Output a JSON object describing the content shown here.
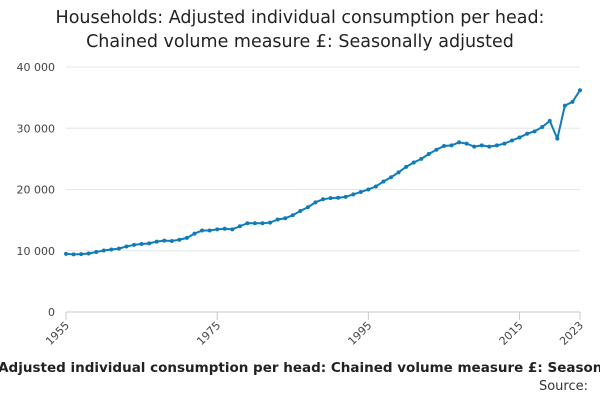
{
  "chart_data": {
    "type": "line",
    "title_lines": [
      "Households: Adjusted individual consumption per head:",
      "Chained volume measure £: Seasonally adjusted"
    ],
    "footer_caption": "Households: Adjusted individual consumption per head: Chained volume measure £: Seasonally adjusted",
    "source_label": "Source:",
    "xlabel": "",
    "ylabel": "",
    "xlim": [
      1955,
      2023
    ],
    "ylim": [
      0,
      40000
    ],
    "x_ticks": [
      1955,
      1975,
      1995,
      2015,
      2023
    ],
    "x_tick_labels": [
      "1955",
      "1975",
      "1995",
      "2015",
      "2023"
    ],
    "y_ticks": [
      0,
      10000,
      20000,
      30000,
      40000
    ],
    "y_tick_labels": [
      "0",
      "10 000",
      "20 000",
      "30 000",
      "40 000"
    ],
    "grid": "horizontal",
    "line_color": "#0f7cb9",
    "series": [
      {
        "x": [
          1955,
          1956,
          1957,
          1958,
          1959,
          1960,
          1961,
          1962,
          1963,
          1964,
          1965,
          1966,
          1967,
          1968,
          1969,
          1970,
          1971,
          1972,
          1973,
          1974,
          1975,
          1976,
          1977,
          1978,
          1979,
          1980,
          1981,
          1982,
          1983,
          1984,
          1985,
          1986,
          1987,
          1988,
          1989,
          1990,
          1991,
          1992,
          1993,
          1994,
          1995,
          1996,
          1997,
          1998,
          1999,
          2000,
          2001,
          2002,
          2003,
          2004,
          2005,
          2006,
          2007,
          2008,
          2009,
          2010,
          2011,
          2012,
          2013,
          2014,
          2015,
          2016,
          2017,
          2018,
          2019,
          2020,
          2021,
          2022,
          2023
        ],
        "values": [
          9500,
          9400,
          9450,
          9550,
          9800,
          10050,
          10200,
          10350,
          10700,
          10950,
          11100,
          11200,
          11500,
          11650,
          11600,
          11800,
          12100,
          12800,
          13300,
          13300,
          13500,
          13600,
          13500,
          14000,
          14500,
          14500,
          14500,
          14600,
          15100,
          15300,
          15800,
          16500,
          17100,
          17900,
          18400,
          18600,
          18650,
          18800,
          19200,
          19600,
          20000,
          20500,
          21300,
          22000,
          22800,
          23700,
          24400,
          25000,
          25800,
          26500,
          27100,
          27200,
          27700,
          27500,
          27000,
          27200,
          27000,
          27200,
          27500,
          28000,
          28500,
          29100,
          29500,
          30200,
          31200,
          28300,
          33700,
          34300,
          36200
        ]
      }
    ]
  }
}
